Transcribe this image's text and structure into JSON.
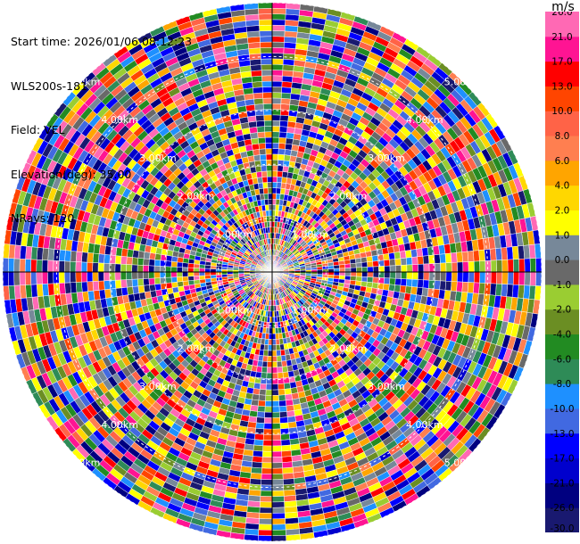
{
  "header": {
    "start_time": "Start time: 2026/01/06 08:12:23",
    "instrument": "WLS200s-181",
    "field": "Field: VEL",
    "elevation": "Elevation(deg): 35.00",
    "nrays": "NRays: 120"
  },
  "chart_data": {
    "type": "heatmap",
    "projection": "polar-ppi",
    "field": "VEL",
    "unit": "m/s",
    "n_rays": 120,
    "elevation_deg": 35.0,
    "range_max_km": 5.0,
    "range_rings_km": [
      1.0,
      2.0,
      3.0,
      4.0,
      5.0
    ],
    "range_ring_labels": [
      "1.00km",
      "2.00km",
      "3.00km",
      "4.00km",
      "5.00km"
    ],
    "grid": true,
    "colorbar": {
      "placement": "right",
      "unit": "m/s",
      "levels": [
        -30.0,
        -26.0,
        -21.0,
        -17.0,
        -13.0,
        -10.0,
        -8.0,
        -6.0,
        -4.0,
        -2.0,
        -1.0,
        0.0,
        1.0,
        2.0,
        4.0,
        6.0,
        8.0,
        10.0,
        13.0,
        17.0,
        21.0,
        26.0,
        30.0
      ],
      "tick_labels": [
        "-30.0",
        "-26.0",
        "-21.0",
        "-17.0",
        "-13.0",
        "-10.0",
        "-8.0",
        "-6.0",
        "-4.0",
        "-2.0",
        "-1.0",
        "0.0",
        "1.0",
        "2.0",
        "4.0",
        "6.0",
        "8.0",
        "10.0",
        "13.0",
        "17.0",
        "21.0",
        "26.0"
      ],
      "colors": [
        "#191970",
        "#000080",
        "#0000cd",
        "#0000ff",
        "#4169e1",
        "#1e90ff",
        "#2e8b57",
        "#228b22",
        "#6b8e23",
        "#9acd32",
        "#696969",
        "#778899",
        "#ffff00",
        "#ffd700",
        "#ffa500",
        "#ff7f50",
        "#ff6347",
        "#ff4500",
        "#ff0000",
        "#ff1493",
        "#ff69b4"
      ]
    }
  }
}
